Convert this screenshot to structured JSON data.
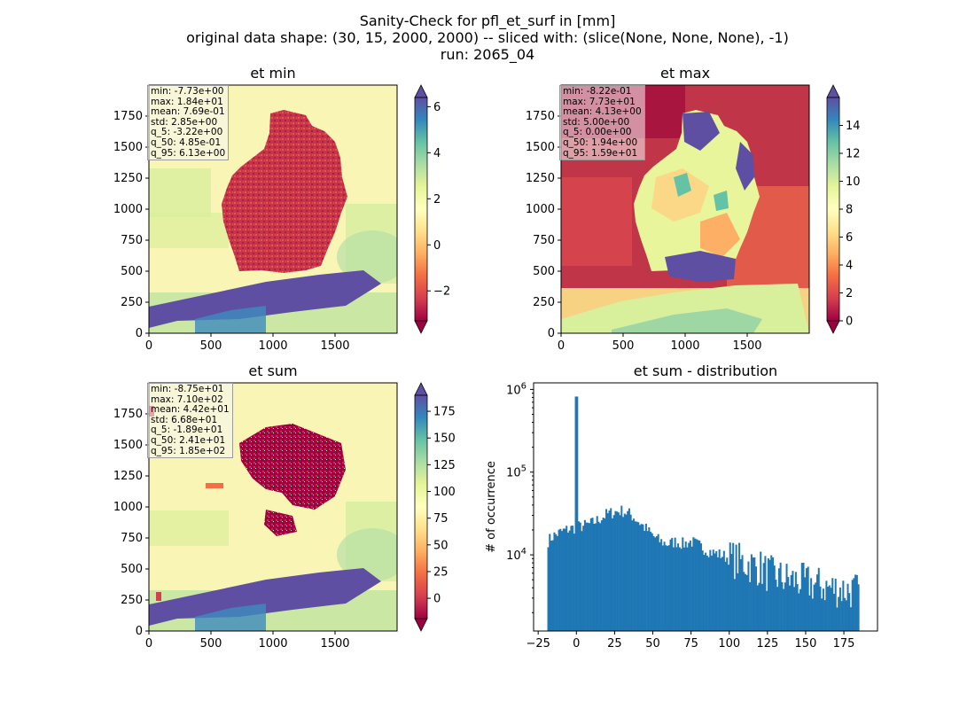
{
  "figure": {
    "title_lines": [
      "Sanity-Check for pfl_et_surf in [mm]",
      "original data shape: (30, 15, 2000, 2000) -- sliced with: (slice(None, None, None), -1)",
      "run: 2065_04"
    ]
  },
  "colors": {
    "ocean_min": "#f9f5b4",
    "germany_min": "#c8334a",
    "alps": "#5e4fa2",
    "hist_bar": "#1f77b4",
    "spectral": [
      "#9e0142",
      "#d53e4f",
      "#f46d43",
      "#fdae61",
      "#fee08b",
      "#ffffbf",
      "#e6f598",
      "#abdda4",
      "#66c2a5",
      "#3288bd",
      "#5e4fa2"
    ]
  },
  "chart_data": [
    {
      "type": "heatmap",
      "title": "et min",
      "xlim": [
        0,
        2000
      ],
      "ylim": [
        0,
        2000
      ],
      "x_ticks": [
        0,
        500,
        1000,
        1500
      ],
      "y_ticks": [
        0,
        250,
        500,
        750,
        1000,
        1250,
        1500,
        1750
      ],
      "colormap": "Spectral",
      "colorbar": {
        "vmin": -3.3,
        "vmax": 6.4,
        "ticks": [
          -2,
          0,
          2,
          4,
          6
        ],
        "tick_labels": [
          "−2",
          "0",
          "2",
          "4",
          "6"
        ],
        "extend": "both"
      },
      "stats": [
        "min: -7.73e+00",
        "max: 1.84e+01",
        "mean: 7.69e-01",
        "std: 2.85e+00",
        "q_5: -3.22e+00",
        "q_50: 4.85e-01",
        "q_95: 6.13e+00"
      ]
    },
    {
      "type": "heatmap",
      "title": "et max",
      "xlim": [
        0,
        2000
      ],
      "ylim": [
        0,
        2000
      ],
      "x_ticks": [
        0,
        500,
        1000,
        1500
      ],
      "y_ticks": [
        0,
        250,
        500,
        750,
        1000,
        1250,
        1500,
        1750
      ],
      "colormap": "Spectral",
      "colorbar": {
        "vmin": 0,
        "vmax": 16,
        "ticks": [
          0,
          2,
          4,
          6,
          8,
          10,
          12,
          14
        ],
        "tick_labels": [
          "0",
          "2",
          "4",
          "6",
          "8",
          "10",
          "12",
          "14"
        ],
        "extend": "both"
      },
      "stats": [
        "min: -8.22e-01",
        "max: 7.73e+01",
        "mean: 4.13e+00",
        "std: 5.00e+00",
        "q_5: 0.00e+00",
        "q_50: 1.94e+00",
        "q_95: 1.59e+01"
      ]
    },
    {
      "type": "heatmap",
      "title": "et sum",
      "xlim": [
        0,
        2000
      ],
      "ylim": [
        0,
        2000
      ],
      "x_ticks": [
        0,
        500,
        1000,
        1500
      ],
      "y_ticks": [
        0,
        250,
        500,
        750,
        1000,
        1250,
        1500,
        1750
      ],
      "colormap": "Spectral",
      "colorbar": {
        "vmin": -19,
        "vmax": 190,
        "ticks": [
          0,
          25,
          50,
          75,
          100,
          125,
          150,
          175
        ],
        "tick_labels": [
          "0",
          "25",
          "50",
          "75",
          "100",
          "125",
          "150",
          "175"
        ],
        "extend": "both"
      },
      "stats": [
        "min: -8.75e+01",
        "max: 7.10e+02",
        "mean: 4.42e+01",
        "std: 6.68e+01",
        "q_5: -1.89e+01",
        "q_50: 2.41e+01",
        "q_95: 1.85e+02"
      ]
    },
    {
      "type": "bar",
      "title": "et sum - distribution",
      "xlabel": "",
      "ylabel": "# of occurrence",
      "yscale": "log",
      "xlim": [
        -28,
        197
      ],
      "ylim": [
        1200,
        1200000
      ],
      "x_ticks": [
        -25,
        0,
        25,
        50,
        75,
        100,
        125,
        150,
        175
      ],
      "x_tick_labels": [
        "−25",
        "0",
        "25",
        "50",
        "75",
        "100",
        "125",
        "150",
        "175"
      ],
      "y_ticks": [
        10000,
        100000,
        1000000
      ],
      "bin_range": [
        -19,
        185
      ],
      "bin_count": 204,
      "profile_x": [
        -19,
        -15,
        -10,
        -5,
        0,
        5,
        10,
        15,
        20,
        25,
        30,
        35,
        40,
        45,
        50,
        55,
        60,
        65,
        70,
        75,
        80,
        85,
        90,
        95,
        100,
        105,
        110,
        115,
        120,
        125,
        130,
        135,
        140,
        145,
        150,
        155,
        160,
        165,
        170,
        175,
        180,
        185
      ],
      "profile_y": [
        14500,
        17000,
        19000,
        20500,
        21500,
        22500,
        24000,
        27000,
        31000,
        33000,
        34000,
        31000,
        26000,
        21000,
        17000,
        14500,
        13500,
        14500,
        13500,
        14500,
        13000,
        11500,
        10500,
        10000,
        9000,
        8500,
        8000,
        7500,
        7000,
        6000,
        5500,
        5200,
        5000,
        4800,
        4600,
        4400,
        4200,
        4000,
        3900,
        3800,
        3700,
        3600
      ],
      "spike": {
        "x": 0,
        "y": 820000
      }
    }
  ]
}
